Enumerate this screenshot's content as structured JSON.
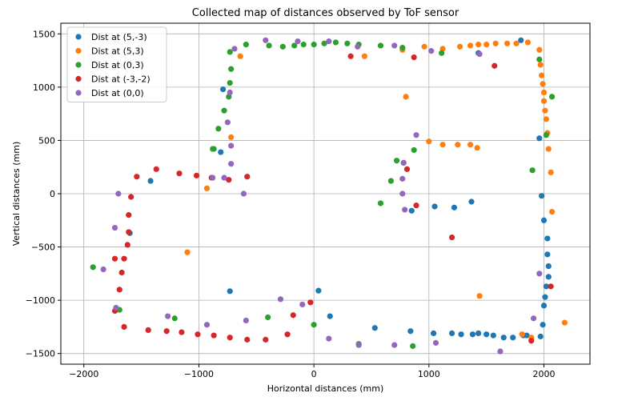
{
  "chart_data": {
    "type": "scatter",
    "title": "Collected map of distances observed by ToF sensor",
    "xlabel": "Horizontal distances (mm)",
    "ylabel": "Vertical distances (mm)",
    "xlim": [
      -2200,
      2400
    ],
    "ylim": [
      -1600,
      1600
    ],
    "xticks": [
      -2000,
      -1000,
      0,
      1000,
      2000
    ],
    "yticks": [
      -1500,
      -1000,
      -500,
      0,
      500,
      1000,
      1500
    ],
    "grid": true,
    "legend_position": "top-left",
    "series": [
      {
        "name": "Dist at (5,-3)",
        "color": "#1f77b4",
        "points": [
          [
            -1600,
            -370
          ],
          [
            -1420,
            120
          ],
          [
            -790,
            980
          ],
          [
            -810,
            390
          ],
          [
            -730,
            -915
          ],
          [
            40,
            -910
          ],
          [
            140,
            -1150
          ],
          [
            530,
            -1260
          ],
          [
            840,
            -1290
          ],
          [
            850,
            -160
          ],
          [
            1050,
            -120
          ],
          [
            1040,
            -1310
          ],
          [
            1200,
            -1310
          ],
          [
            1220,
            -130
          ],
          [
            1280,
            -1320
          ],
          [
            1370,
            -75
          ],
          [
            1380,
            -1320
          ],
          [
            1430,
            -1310
          ],
          [
            1500,
            -1320
          ],
          [
            1560,
            -1330
          ],
          [
            1650,
            -1350
          ],
          [
            1730,
            -1350
          ],
          [
            1800,
            1440
          ],
          [
            1820,
            -1330
          ],
          [
            1850,
            -1330
          ],
          [
            1960,
            520
          ],
          [
            1970,
            -1340
          ],
          [
            1980,
            -20
          ],
          [
            1990,
            -1230
          ],
          [
            2000,
            -250
          ],
          [
            2000,
            -1050
          ],
          [
            2010,
            -970
          ],
          [
            2020,
            -870
          ],
          [
            2030,
            -420
          ],
          [
            2030,
            -570
          ],
          [
            2040,
            -680
          ],
          [
            2040,
            -780
          ],
          [
            1430,
            1320
          ]
        ]
      },
      {
        "name": "Dist at (5,3)",
        "color": "#ff7f0e",
        "points": [
          [
            -640,
            1290
          ],
          [
            -720,
            530
          ],
          [
            -930,
            50
          ],
          [
            -1100,
            -550
          ],
          [
            440,
            1290
          ],
          [
            770,
            1350
          ],
          [
            800,
            910
          ],
          [
            960,
            1380
          ],
          [
            1000,
            490
          ],
          [
            1120,
            460
          ],
          [
            1120,
            1360
          ],
          [
            1250,
            460
          ],
          [
            1270,
            1380
          ],
          [
            1360,
            460
          ],
          [
            1360,
            1390
          ],
          [
            1420,
            430
          ],
          [
            1440,
            -960
          ],
          [
            1430,
            1400
          ],
          [
            1500,
            1400
          ],
          [
            1580,
            1410
          ],
          [
            1680,
            1410
          ],
          [
            1760,
            1410
          ],
          [
            1860,
            1420
          ],
          [
            1890,
            -1350
          ],
          [
            1960,
            1350
          ],
          [
            1970,
            1210
          ],
          [
            1980,
            1110
          ],
          [
            1990,
            1030
          ],
          [
            2000,
            950
          ],
          [
            2000,
            870
          ],
          [
            2010,
            780
          ],
          [
            2020,
            700
          ],
          [
            2030,
            570
          ],
          [
            2040,
            420
          ],
          [
            2060,
            200
          ],
          [
            2070,
            -170
          ],
          [
            2180,
            -1210
          ],
          [
            1810,
            -1320
          ]
        ]
      },
      {
        "name": "Dist at (0,3)",
        "color": "#2ca02c",
        "points": [
          [
            -1920,
            -690
          ],
          [
            -1690,
            -1090
          ],
          [
            -1210,
            -1170
          ],
          [
            -870,
            420
          ],
          [
            -830,
            610
          ],
          [
            -780,
            780
          ],
          [
            -740,
            910
          ],
          [
            -730,
            1040
          ],
          [
            -720,
            1170
          ],
          [
            -730,
            1330
          ],
          [
            -590,
            1400
          ],
          [
            -400,
            -1160
          ],
          [
            -390,
            1390
          ],
          [
            -270,
            1380
          ],
          [
            -170,
            1390
          ],
          [
            -90,
            1400
          ],
          [
            0,
            1400
          ],
          [
            0,
            -1230
          ],
          [
            90,
            1410
          ],
          [
            190,
            1420
          ],
          [
            290,
            1410
          ],
          [
            390,
            1400
          ],
          [
            390,
            -1410
          ],
          [
            580,
            1390
          ],
          [
            580,
            -90
          ],
          [
            670,
            120
          ],
          [
            720,
            310
          ],
          [
            770,
            1370
          ],
          [
            780,
            290
          ],
          [
            860,
            -1430
          ],
          [
            870,
            410
          ],
          [
            1110,
            1320
          ],
          [
            1900,
            220
          ],
          [
            1960,
            1260
          ],
          [
            2020,
            550
          ],
          [
            2070,
            910
          ],
          [
            -880,
            420
          ]
        ]
      },
      {
        "name": "Dist at (-3,-2)",
        "color": "#d62728",
        "points": [
          [
            -1730,
            -1100
          ],
          [
            -1730,
            -610
          ],
          [
            -1690,
            -900
          ],
          [
            -1670,
            -740
          ],
          [
            -1650,
            -1250
          ],
          [
            -1650,
            -610
          ],
          [
            -1620,
            -480
          ],
          [
            -1610,
            -360
          ],
          [
            -1610,
            -200
          ],
          [
            -1590,
            -30
          ],
          [
            -1540,
            160
          ],
          [
            -1440,
            -1280
          ],
          [
            -1370,
            230
          ],
          [
            -1280,
            -1290
          ],
          [
            -1170,
            190
          ],
          [
            -1150,
            -1300
          ],
          [
            -1020,
            170
          ],
          [
            -1010,
            -1320
          ],
          [
            -890,
            150
          ],
          [
            -870,
            -1330
          ],
          [
            -740,
            130
          ],
          [
            -730,
            -1350
          ],
          [
            -580,
            160
          ],
          [
            -580,
            -1370
          ],
          [
            -420,
            -1370
          ],
          [
            -230,
            -1320
          ],
          [
            -180,
            -1140
          ],
          [
            -30,
            -1020
          ],
          [
            320,
            1290
          ],
          [
            810,
            230
          ],
          [
            870,
            1280
          ],
          [
            890,
            -110
          ],
          [
            1200,
            -410
          ],
          [
            1570,
            1200
          ],
          [
            1890,
            -1380
          ],
          [
            2060,
            -870
          ]
        ]
      },
      {
        "name": "Dist at (0,0)",
        "color": "#9467bd",
        "points": [
          [
            -1830,
            -710
          ],
          [
            -1730,
            -320
          ],
          [
            -1720,
            -1070
          ],
          [
            -1700,
            0
          ],
          [
            -1270,
            -1150
          ],
          [
            -930,
            -1230
          ],
          [
            -780,
            150
          ],
          [
            -750,
            670
          ],
          [
            -730,
            950
          ],
          [
            -720,
            450
          ],
          [
            -720,
            280
          ],
          [
            -690,
            1360
          ],
          [
            -610,
            0
          ],
          [
            -590,
            -1190
          ],
          [
            -420,
            1440
          ],
          [
            -290,
            -990
          ],
          [
            -140,
            1430
          ],
          [
            -100,
            -1040
          ],
          [
            130,
            1430
          ],
          [
            130,
            -1360
          ],
          [
            380,
            1380
          ],
          [
            390,
            -1420
          ],
          [
            700,
            -1420
          ],
          [
            700,
            1390
          ],
          [
            770,
            140
          ],
          [
            770,
            0
          ],
          [
            780,
            290
          ],
          [
            790,
            -150
          ],
          [
            890,
            550
          ],
          [
            1020,
            1340
          ],
          [
            1060,
            -1400
          ],
          [
            1440,
            1310
          ],
          [
            1620,
            -1480
          ],
          [
            1910,
            -1170
          ],
          [
            1960,
            -750
          ],
          [
            -880,
            150
          ]
        ]
      }
    ]
  }
}
